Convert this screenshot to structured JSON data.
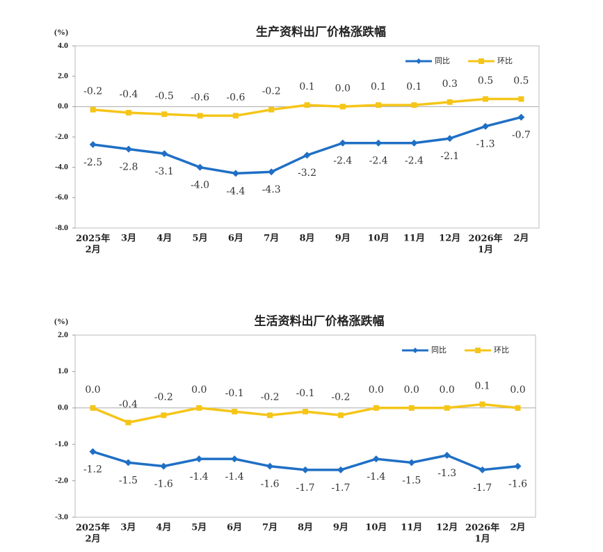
{
  "chart_data": [
    {
      "type": "line",
      "title": "生产资料出厂价格涨跌幅",
      "y_label": "(%)",
      "categories": [
        "2025年\n2月",
        "3月",
        "4月",
        "5月",
        "6月",
        "7月",
        "8月",
        "9月",
        "10月",
        "11月",
        "12月",
        "2026年\n1月",
        "2月"
      ],
      "series": [
        {
          "name": "同比",
          "color": "#1f6fc5",
          "marker": "diamond",
          "values": [
            -2.5,
            -2.8,
            -3.1,
            -4.0,
            -4.4,
            -4.3,
            -3.2,
            -2.4,
            -2.4,
            -2.4,
            -2.1,
            -1.3,
            -0.7
          ],
          "value_labels": [
            "-2.5",
            "-2.8",
            "-3.1",
            "-4.0",
            "-4.4",
            "-4.3",
            "-3.2",
            "-2.4",
            "-2.4",
            "-2.4",
            "-2.1",
            "-1.3",
            "-0.7"
          ]
        },
        {
          "name": "环比",
          "color": "#f5c518",
          "marker": "square",
          "values": [
            -0.2,
            -0.4,
            -0.5,
            -0.6,
            -0.6,
            -0.2,
            0.1,
            0.0,
            0.1,
            0.1,
            0.3,
            0.5,
            0.5
          ],
          "value_labels": [
            "-0.2",
            "-0.4",
            "-0.5",
            "-0.6",
            "-0.6",
            "-0.2",
            "0.1",
            "0.0",
            "0.1",
            "0.1",
            "0.3",
            "0.5",
            "0.5"
          ]
        }
      ],
      "ylim": [
        -8,
        4
      ],
      "yticks": [
        {
          "value": 4,
          "label": "4.0"
        },
        {
          "value": 2,
          "label": "2.0"
        },
        {
          "value": 0,
          "label": "0.0"
        },
        {
          "value": -2,
          "label": "-2.0"
        },
        {
          "value": -4,
          "label": "-4.0"
        },
        {
          "value": -6,
          "label": "-6.0"
        },
        {
          "value": -8,
          "label": "-8.0"
        }
      ],
      "grid": false,
      "legend": "upper right"
    },
    {
      "type": "line",
      "title": "生活资料出厂价格涨跌幅",
      "y_label": "(%)",
      "categories": [
        "2025年\n2月",
        "3月",
        "4月",
        "5月",
        "6月",
        "7月",
        "8月",
        "9月",
        "10月",
        "11月",
        "12月",
        "2026年\n1月",
        "2月"
      ],
      "series": [
        {
          "name": "同比",
          "color": "#1f6fc5",
          "marker": "diamond",
          "values": [
            -1.2,
            -1.5,
            -1.6,
            -1.4,
            -1.4,
            -1.6,
            -1.7,
            -1.7,
            -1.4,
            -1.5,
            -1.3,
            -1.7,
            -1.6
          ],
          "value_labels": [
            "-1.2",
            "-1.5",
            "-1.6",
            "-1.4",
            "-1.4",
            "-1.6",
            "-1.7",
            "-1.7",
            "-1.4",
            "-1.5",
            "-1.3",
            "-1.7",
            "-1.6"
          ]
        },
        {
          "name": "环比",
          "color": "#f5c518",
          "marker": "square",
          "values": [
            0.0,
            -0.4,
            -0.2,
            0.0,
            -0.1,
            -0.2,
            -0.1,
            -0.2,
            0.0,
            0.0,
            0.0,
            0.1,
            0.0
          ],
          "value_labels": [
            "0.0",
            "-0.4",
            "-0.2",
            "0.0",
            "-0.1",
            "-0.2",
            "-0.1",
            "-0.2",
            "0.0",
            "0.0",
            "0.0",
            "0.1",
            "0.0"
          ]
        }
      ],
      "ylim": [
        -3,
        2
      ],
      "yticks": [
        {
          "value": 2,
          "label": "2.0"
        },
        {
          "value": 1,
          "label": "1.0"
        },
        {
          "value": 0,
          "label": "0.0"
        },
        {
          "value": -1,
          "label": "-1.0"
        },
        {
          "value": -2,
          "label": "-2.0"
        },
        {
          "value": -3,
          "label": "-3.0"
        }
      ],
      "grid": false,
      "legend": "upper right"
    }
  ]
}
